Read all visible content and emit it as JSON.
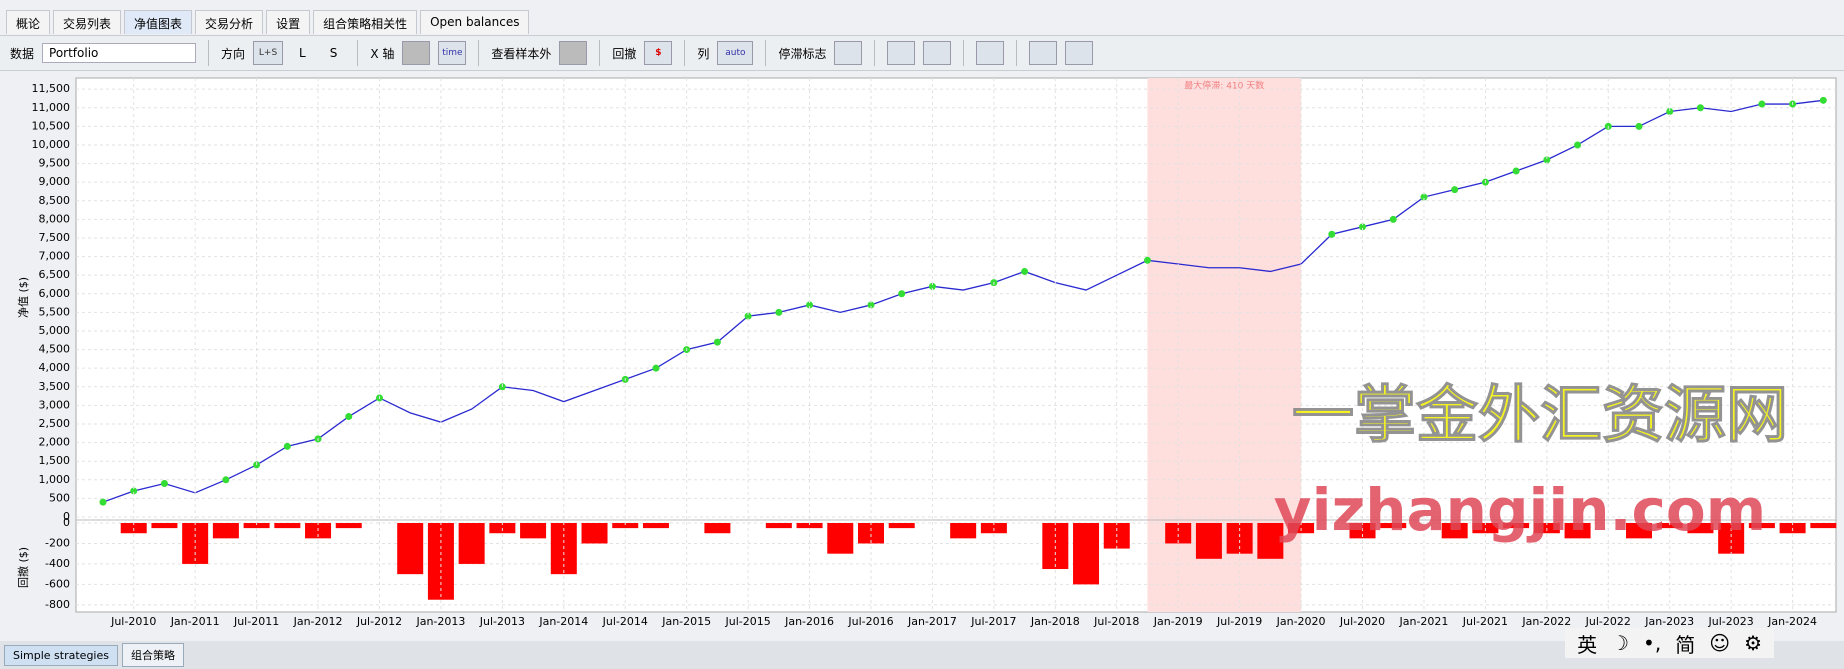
{
  "tabs": [
    "概论",
    "交易列表",
    "净值图表",
    "交易分析",
    "设置",
    "组合策略相关性",
    "Open balances"
  ],
  "toolbar": {
    "data_label": "数据",
    "data_value": "Portfolio",
    "direction_label": "方向",
    "direction_options": [
      "L+S",
      "L",
      "S"
    ],
    "x_axis_label": "X 轴",
    "x_axis_icon_text": "time",
    "out_of_sample_label": "查看样本外",
    "drawdown_label": "回撤",
    "drawdown_icon_text": "$",
    "columns_label": "列",
    "columns_value": "auto",
    "stagnation_label": "停滞标志"
  },
  "chart_data": [
    {
      "type": "line",
      "y_label": "净值 ($)",
      "color": "#2a2ad0",
      "new_high_color": "#33dd33",
      "grid": true,
      "x": [
        "Apr-2010",
        "Jul-2010",
        "Oct-2010",
        "Jan-2011",
        "Apr-2011",
        "Jul-2011",
        "Oct-2011",
        "Jan-2012",
        "Apr-2012",
        "Jul-2012",
        "Oct-2012",
        "Jan-2013",
        "Apr-2013",
        "Jul-2013",
        "Oct-2013",
        "Jan-2014",
        "Apr-2014",
        "Jul-2014",
        "Oct-2014",
        "Jan-2015",
        "Apr-2015",
        "Jul-2015",
        "Oct-2015",
        "Jan-2016",
        "Apr-2016",
        "Jul-2016",
        "Oct-2016",
        "Jan-2017",
        "Apr-2017",
        "Jul-2017",
        "Oct-2017",
        "Jan-2018",
        "Apr-2018",
        "Jul-2018",
        "Oct-2018",
        "Jan-2019",
        "Apr-2019",
        "Jul-2019",
        "Oct-2019",
        "Jan-2020",
        "Apr-2020",
        "Jul-2020",
        "Oct-2020",
        "Jan-2021",
        "Apr-2021",
        "Jul-2021",
        "Oct-2021",
        "Jan-2022",
        "Apr-2022",
        "Jul-2022",
        "Oct-2022",
        "Jan-2023",
        "Apr-2023",
        "Jul-2023",
        "Oct-2023",
        "Jan-2024",
        "Apr-2024"
      ],
      "values": [
        400,
        700,
        900,
        650,
        1000,
        1400,
        1900,
        2100,
        2700,
        3200,
        2800,
        2550,
        2900,
        3500,
        3400,
        3100,
        3400,
        3700,
        4000,
        4500,
        4700,
        5400,
        5500,
        5700,
        5500,
        5700,
        6000,
        6200,
        6100,
        6300,
        6600,
        6300,
        6100,
        6500,
        6900,
        6800,
        6700,
        6700,
        6600,
        6800,
        7600,
        7800,
        8000,
        8600,
        8800,
        9000,
        9300,
        9600,
        10000,
        10500,
        10500,
        10900,
        11000,
        10900,
        11100,
        11100,
        11200
      ],
      "ylim": [
        0,
        11800
      ],
      "yticks": [
        0,
        500,
        {
          "value": 1000,
          "label": "1,000"
        },
        {
          "value": 1500,
          "label": "1,500"
        },
        {
          "value": 2000,
          "label": "2,000"
        },
        {
          "value": 2500,
          "label": "2,500"
        },
        {
          "value": 3000,
          "label": "3,000"
        },
        {
          "value": 3500,
          "label": "3,500"
        },
        {
          "value": 4000,
          "label": "4,000"
        },
        {
          "value": 4500,
          "label": "4,500"
        },
        {
          "value": 5000,
          "label": "5,000"
        },
        {
          "value": 5500,
          "label": "5,500"
        },
        {
          "value": 6000,
          "label": "6,000"
        },
        {
          "value": 6500,
          "label": "6,500"
        },
        {
          "value": 7000,
          "label": "7,000"
        },
        {
          "value": 7500,
          "label": "7,500"
        },
        {
          "value": 8000,
          "label": "8,000"
        },
        {
          "value": 8500,
          "label": "8,500"
        },
        {
          "value": 9000,
          "label": "9,000"
        },
        {
          "value": 9500,
          "label": "9,500"
        },
        {
          "value": 10000,
          "label": "10,000"
        },
        {
          "value": 10500,
          "label": "10,500"
        },
        {
          "value": 11000,
          "label": "11,000"
        },
        {
          "value": 11500,
          "label": "11,500"
        }
      ],
      "annotation": {
        "text": "最大停滞: 410 天数",
        "start": "Oct-2018",
        "end": "Jan-2020",
        "color": "#ffdede"
      }
    },
    {
      "type": "bar",
      "y_label": "回撤 ($)",
      "color": "#ff0000",
      "grid": true,
      "x": [
        "Apr-2010",
        "Jul-2010",
        "Oct-2010",
        "Jan-2011",
        "Apr-2011",
        "Jul-2011",
        "Oct-2011",
        "Jan-2012",
        "Apr-2012",
        "Jul-2012",
        "Oct-2012",
        "Jan-2013",
        "Apr-2013",
        "Jul-2013",
        "Oct-2013",
        "Jan-2014",
        "Apr-2014",
        "Jul-2014",
        "Oct-2014",
        "Jan-2015",
        "Apr-2015",
        "Jul-2015",
        "Oct-2015",
        "Jan-2016",
        "Apr-2016",
        "Jul-2016",
        "Oct-2016",
        "Jan-2017",
        "Apr-2017",
        "Jul-2017",
        "Oct-2017",
        "Jan-2018",
        "Apr-2018",
        "Jul-2018",
        "Oct-2018",
        "Jan-2019",
        "Apr-2019",
        "Jul-2019",
        "Oct-2019",
        "Jan-2020",
        "Apr-2020",
        "Jul-2020",
        "Oct-2020",
        "Jan-2021",
        "Apr-2021",
        "Jul-2021",
        "Oct-2021",
        "Jan-2022",
        "Apr-2022",
        "Jul-2022",
        "Oct-2022",
        "Jan-2023",
        "Apr-2023",
        "Jul-2023",
        "Oct-2023",
        "Jan-2024",
        "Apr-2024"
      ],
      "values": [
        0,
        -100,
        -50,
        -400,
        -150,
        -50,
        -50,
        -150,
        -50,
        0,
        -500,
        -750,
        -400,
        -100,
        -150,
        -500,
        -200,
        -50,
        -50,
        0,
        -100,
        0,
        -50,
        -50,
        -300,
        -200,
        -50,
        0,
        -150,
        -100,
        0,
        -450,
        -600,
        -250,
        0,
        -200,
        -350,
        -300,
        -350,
        -100,
        0,
        -150,
        -50,
        0,
        -150,
        -100,
        -50,
        -100,
        -150,
        0,
        -150,
        -50,
        -100,
        -300,
        -50,
        -100,
        -50
      ],
      "ylim": [
        -870,
        0
      ],
      "yticks": [
        0,
        -200,
        -400,
        -600,
        -800
      ],
      "xticks": [
        "Jul-2010",
        "Jan-2011",
        "Jul-2011",
        "Jan-2012",
        "Jul-2012",
        "Jan-2013",
        "Jul-2013",
        "Jan-2014",
        "Jul-2014",
        "Jan-2015",
        "Jul-2015",
        "Jan-2016",
        "Jul-2016",
        "Jan-2017",
        "Jul-2017",
        "Jan-2018",
        "Jul-2018",
        "Jan-2019",
        "Jul-2019",
        "Jan-2020",
        "Jul-2020",
        "Jan-2021",
        "Jul-2021",
        "Jan-2022",
        "Jul-2022",
        "Jan-2023",
        "Jul-2023",
        "Jan-2024"
      ]
    }
  ],
  "watermark": {
    "title": "一掌金外汇资源网",
    "url": "yizhangjin.com"
  },
  "bottom_tabs": [
    "Simple strategies",
    "组合策略"
  ],
  "ime_bar": [
    "英",
    "简"
  ]
}
